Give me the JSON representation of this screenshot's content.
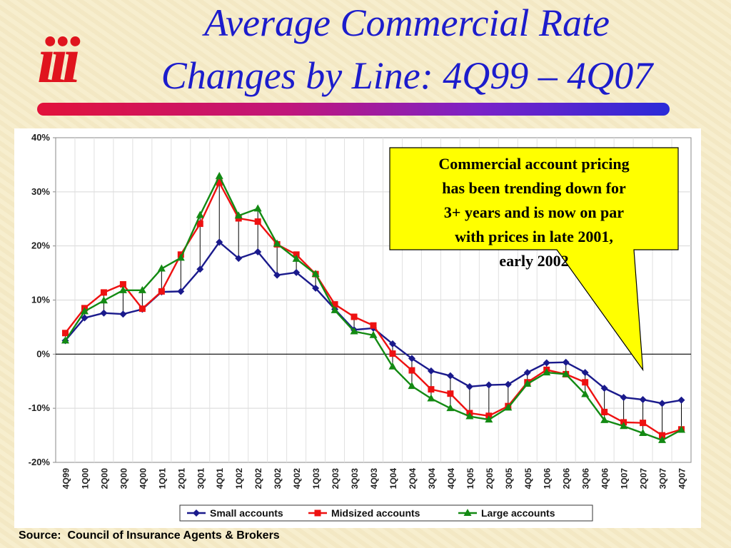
{
  "slide": {
    "logo_text": "iii",
    "title_line1": "Average Commercial Rate",
    "title_line2": "Changes by Line: 4Q99 – 4Q07",
    "source_text": "Source:  Council of Insurance Agents & Brokers",
    "callout_text": "Commercial account pricing has been trending down for 3+ years and is now on par with prices in late 2001, early 2002",
    "colors": {
      "title": "#1c1ccc",
      "logo": "#e0141e",
      "callout_fill": "#ffff00",
      "background": "#f6ecc9"
    }
  },
  "chart_data": {
    "type": "line",
    "title": "",
    "xlabel": "",
    "ylabel": "",
    "ylim": [
      -20,
      40
    ],
    "y_ticks": [
      -20,
      -10,
      0,
      10,
      20,
      30,
      40
    ],
    "y_tick_labels": [
      "-20%",
      "-10%",
      "0%",
      "10%",
      "20%",
      "30%",
      "40%"
    ],
    "grid": true,
    "legend_position": "bottom",
    "drop_lines": true,
    "categories": [
      "4Q99",
      "1Q00",
      "2Q00",
      "3Q00",
      "4Q00",
      "1Q01",
      "2Q01",
      "3Q01",
      "4Q01",
      "1Q02",
      "2Q02",
      "3Q02",
      "4Q02",
      "1Q03",
      "2Q03",
      "3Q03",
      "4Q03",
      "1Q04",
      "2Q04",
      "3Q04",
      "4Q04",
      "1Q05",
      "2Q05",
      "3Q05",
      "4Q05",
      "1Q06",
      "2Q06",
      "3Q06",
      "4Q06",
      "1Q07",
      "2Q07",
      "3Q07",
      "4Q07"
    ],
    "series": [
      {
        "name": "Small accounts",
        "color": "#1a1a8c",
        "marker": "diamond",
        "values": [
          2.5,
          6.7,
          7.6,
          7.4,
          8.3,
          11.5,
          11.6,
          15.7,
          20.7,
          17.7,
          18.9,
          14.6,
          15.1,
          12.2,
          8.3,
          4.5,
          4.8,
          1.9,
          -0.8,
          -3.1,
          -4.0,
          -6.0,
          -5.7,
          -5.6,
          -3.4,
          -1.6,
          -1.5,
          -3.4,
          -6.3,
          -8.0,
          -8.4,
          -9.1,
          -8.5
        ]
      },
      {
        "name": "Midsized accounts",
        "color": "#ee1111",
        "marker": "square",
        "values": [
          3.9,
          8.5,
          11.4,
          12.9,
          8.4,
          11.6,
          18.4,
          24.1,
          31.7,
          25.1,
          24.5,
          20.3,
          18.4,
          14.8,
          9.2,
          6.9,
          5.3,
          0.1,
          -3.0,
          -6.5,
          -7.3,
          -10.9,
          -11.4,
          -9.6,
          -5.2,
          -2.9,
          -3.7,
          -5.2,
          -10.7,
          -12.6,
          -12.7,
          -15.0,
          -13.9
        ]
      },
      {
        "name": "Large accounts",
        "color": "#138a13",
        "marker": "triangle",
        "values": [
          2.5,
          7.9,
          9.9,
          11.8,
          11.8,
          15.8,
          17.8,
          25.7,
          32.9,
          25.6,
          26.9,
          20.4,
          17.6,
          14.8,
          8.1,
          4.2,
          3.5,
          -2.3,
          -5.9,
          -8.2,
          -10.0,
          -11.5,
          -12.1,
          -9.9,
          -5.5,
          -3.4,
          -3.7,
          -7.4,
          -12.2,
          -13.3,
          -14.6,
          -15.9,
          -14.0
        ]
      }
    ]
  }
}
